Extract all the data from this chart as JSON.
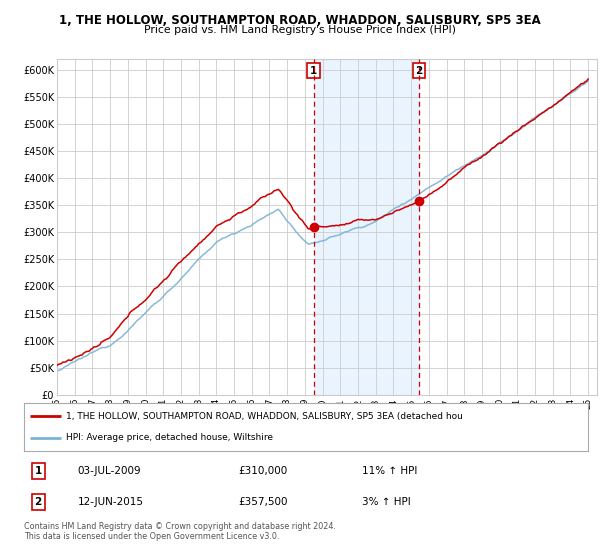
{
  "title_line1": "1, THE HOLLOW, SOUTHAMPTON ROAD, WHADDON, SALISBURY, SP5 3EA",
  "title_line2": "Price paid vs. HM Land Registry's House Price Index (HPI)",
  "ylim": [
    0,
    620000
  ],
  "yticks": [
    0,
    50000,
    100000,
    150000,
    200000,
    250000,
    300000,
    350000,
    400000,
    450000,
    500000,
    550000,
    600000
  ],
  "ytick_labels": [
    "£0",
    "£50K",
    "£100K",
    "£150K",
    "£200K",
    "£250K",
    "£300K",
    "£350K",
    "£400K",
    "£450K",
    "£500K",
    "£550K",
    "£600K"
  ],
  "hpi_color": "#7ab3d4",
  "price_color": "#cc0000",
  "point1_x": 2009.5,
  "point1_y": 310000,
  "point2_x": 2015.45,
  "point2_y": 357500,
  "shade_x1": 2009.5,
  "shade_x2": 2015.45,
  "vline1_x": 2009.5,
  "vline2_x": 2015.45,
  "legend_label1": "1, THE HOLLOW, SOUTHAMPTON ROAD, WHADDON, SALISBURY, SP5 3EA (detached hou",
  "legend_label2": "HPI: Average price, detached house, Wiltshire",
  "table_row1": [
    "1",
    "03-JUL-2009",
    "£310,000",
    "11% ↑ HPI"
  ],
  "table_row2": [
    "2",
    "12-JUN-2015",
    "£357,500",
    "3% ↑ HPI"
  ],
  "footer": "Contains HM Land Registry data © Crown copyright and database right 2024.\nThis data is licensed under the Open Government Licence v3.0.",
  "bg_color": "#ffffff",
  "plot_bg_color": "#ffffff",
  "grid_color": "#cccccc",
  "shade_color": "#ddeeff",
  "xlim_start": 1995,
  "xlim_end": 2025.5
}
